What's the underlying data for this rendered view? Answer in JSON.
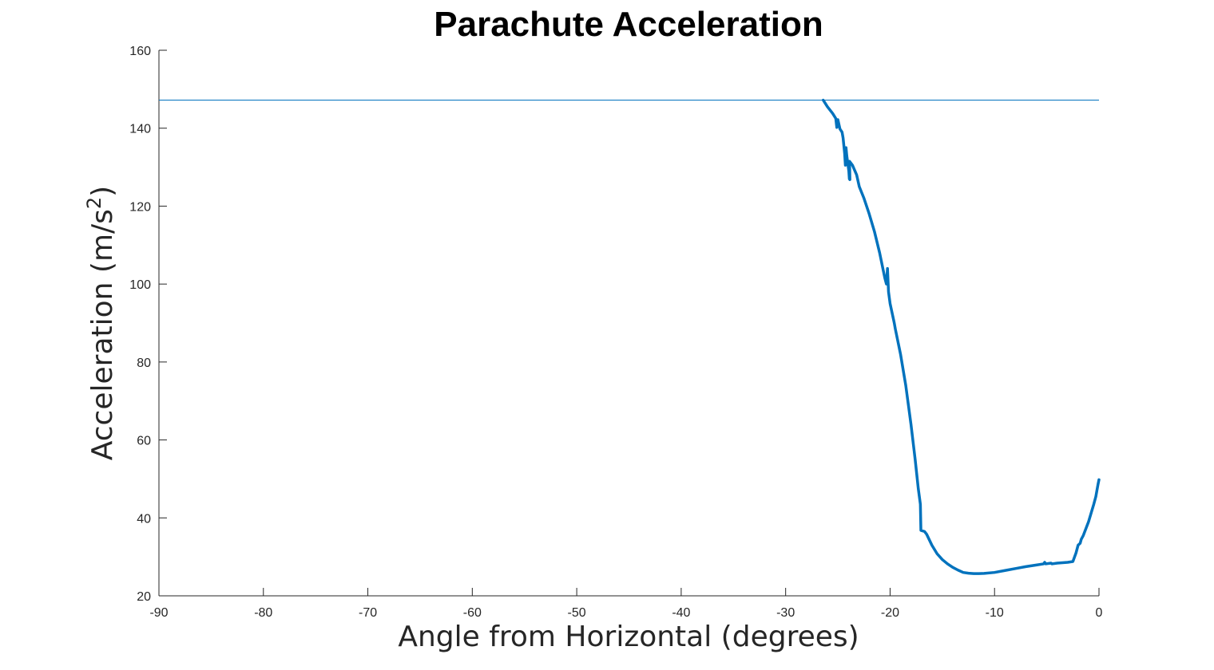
{
  "chart_data": {
    "type": "line",
    "title": "Parachute Acceleration",
    "xlabel": "Angle from Horizontal (degrees)",
    "ylabel": {
      "main": "Acceleration (m/s",
      "superscript": "2",
      "close": ")"
    },
    "xlim": [
      -90,
      0
    ],
    "ylim": [
      20,
      160
    ],
    "x_ticks": [
      -90,
      -80,
      -70,
      -60,
      -50,
      -40,
      -30,
      -20,
      -10,
      0
    ],
    "x_tick_labels": [
      "-90",
      "-80",
      "-70",
      "-60",
      "-50",
      "-40",
      "-30",
      "-20",
      "-10",
      "0"
    ],
    "y_ticks": [
      20,
      40,
      60,
      80,
      100,
      120,
      140,
      160
    ],
    "y_tick_labels": [
      "20",
      "40",
      "60",
      "80",
      "100",
      "120",
      "140",
      "160"
    ],
    "grid": false,
    "legend": "none",
    "series": [
      {
        "color": "#0072BD",
        "points": [
          [
            -90,
            147.2
          ],
          [
            -26.4,
            147.2
          ],
          [
            -26.0,
            145.5
          ],
          [
            -25.5,
            143.8
          ],
          [
            -25.2,
            142.5
          ],
          [
            -25.1,
            140.2
          ],
          [
            -25.0,
            142.2
          ],
          [
            -24.8,
            139.8
          ],
          [
            -24.6,
            139.0
          ],
          [
            -24.5,
            137.5
          ],
          [
            -24.35,
            133.5
          ],
          [
            -24.28,
            130.5
          ],
          [
            -24.22,
            135.0
          ],
          [
            -24.15,
            133.0
          ],
          [
            -24.05,
            131.0
          ],
          [
            -23.95,
            129.0
          ],
          [
            -23.9,
            127.0
          ],
          [
            -23.85,
            126.8
          ],
          [
            -23.88,
            131.5
          ],
          [
            -23.6,
            130.5
          ],
          [
            -23.2,
            128.0
          ],
          [
            -22.95,
            125.0
          ],
          [
            -22.5,
            122.0
          ],
          [
            -22.0,
            118.0
          ],
          [
            -21.5,
            113.5
          ],
          [
            -21.0,
            108.0
          ],
          [
            -20.5,
            101.5
          ],
          [
            -20.35,
            100.0
          ],
          [
            -20.25,
            104.0
          ],
          [
            -20.15,
            98.0
          ],
          [
            -20.0,
            95.0
          ],
          [
            -19.6,
            90.0
          ],
          [
            -19.5,
            88.5
          ],
          [
            -19.0,
            82.0
          ],
          [
            -18.5,
            74.0
          ],
          [
            -18.0,
            64.0
          ],
          [
            -17.6,
            55.0
          ],
          [
            -17.3,
            47.5
          ],
          [
            -17.1,
            43.5
          ],
          [
            -17.05,
            36.8
          ],
          [
            -16.7,
            36.5
          ],
          [
            -16.5,
            35.8
          ],
          [
            -16.0,
            33.0
          ],
          [
            -15.5,
            30.8
          ],
          [
            -15.0,
            29.3
          ],
          [
            -14.5,
            28.2
          ],
          [
            -14.0,
            27.3
          ],
          [
            -13.5,
            26.6
          ],
          [
            -13.0,
            26.0
          ],
          [
            -12.5,
            25.8
          ],
          [
            -12.0,
            25.7
          ],
          [
            -11.5,
            25.7
          ],
          [
            -11.0,
            25.75
          ],
          [
            -10.0,
            26.0
          ],
          [
            -9.0,
            26.5
          ],
          [
            -8.0,
            27.0
          ],
          [
            -7.0,
            27.5
          ],
          [
            -6.0,
            27.9
          ],
          [
            -5.3,
            28.2
          ],
          [
            -5.2,
            28.6
          ],
          [
            -5.1,
            28.2
          ],
          [
            -4.6,
            28.4
          ],
          [
            -4.5,
            28.2
          ],
          [
            -4.0,
            28.4
          ],
          [
            -3.0,
            28.6
          ],
          [
            -2.5,
            28.8
          ],
          [
            -2.2,
            31.0
          ],
          [
            -2.0,
            33.0
          ],
          [
            -1.8,
            33.5
          ],
          [
            -1.7,
            34.5
          ],
          [
            -1.5,
            35.5
          ],
          [
            -1.0,
            39.0
          ],
          [
            -0.5,
            43.5
          ],
          [
            -0.3,
            45.5
          ],
          [
            -0.2,
            47.0
          ],
          [
            -0.1,
            48.5
          ],
          [
            0.0,
            49.8
          ]
        ]
      }
    ]
  }
}
